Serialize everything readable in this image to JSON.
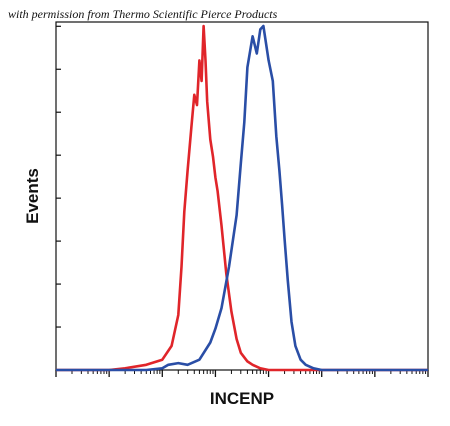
{
  "credit": "with permission from Thermo Scientific Pierce Products",
  "chart_data": {
    "type": "area",
    "title": "",
    "xlabel": "INCENP",
    "ylabel": "Events",
    "xscale": "log",
    "xlim": [
      1,
      10000000
    ],
    "ylim": [
      0,
      100
    ],
    "grid": false,
    "legend": "none",
    "series": [
      {
        "color": "#e0252a",
        "x": [
          1,
          10,
          20,
          50,
          100,
          150,
          200,
          230,
          260,
          300,
          350,
          400,
          450,
          500,
          550,
          600,
          650,
          700,
          800,
          900,
          1000,
          1100,
          1300,
          1600,
          2000,
          2500,
          3000,
          4000,
          5000,
          7000,
          10000,
          100000,
          1000000,
          10000000
        ],
        "y": [
          0,
          0,
          0.5,
          1.5,
          3,
          7,
          16,
          30,
          46,
          58,
          70,
          80,
          77,
          90,
          84,
          100,
          90,
          78,
          67,
          62,
          56,
          52,
          42,
          28,
          17,
          9,
          5,
          2.5,
          1.5,
          0.5,
          0,
          0,
          0,
          0
        ]
      },
      {
        "color": "#2a4ea6",
        "x": [
          1,
          50,
          100,
          130,
          200,
          300,
          500,
          800,
          1000,
          1300,
          1800,
          2500,
          3000,
          3500,
          4000,
          5000,
          6000,
          7000,
          8000,
          10000,
          12000,
          14000,
          16000,
          18000,
          20000,
          23000,
          27000,
          32000,
          40000,
          50000,
          70000,
          100000,
          1000000,
          10000000
        ],
        "y": [
          0,
          0,
          0.5,
          1.5,
          2,
          1.5,
          3,
          8,
          12,
          18,
          30,
          45,
          60,
          72,
          88,
          97,
          92,
          99,
          100,
          90,
          84,
          68,
          58,
          48,
          38,
          26,
          14,
          7,
          3,
          1.5,
          0.5,
          0,
          0,
          0
        ]
      }
    ]
  }
}
